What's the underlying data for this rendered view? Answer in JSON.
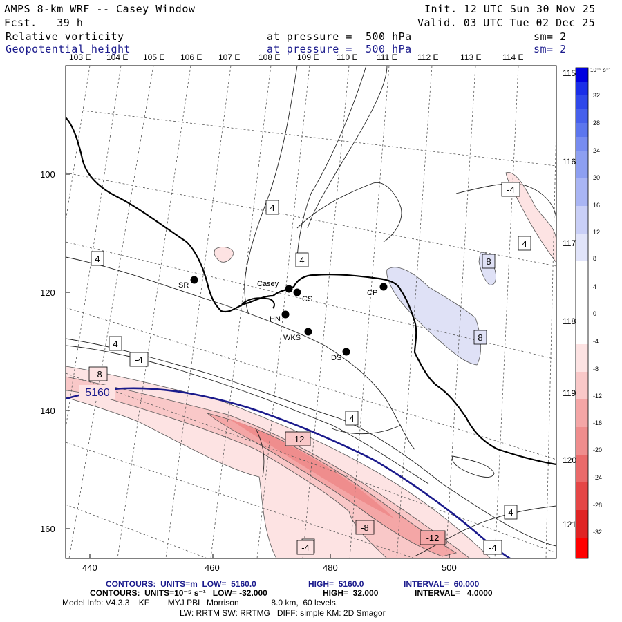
{
  "header": {
    "title": "AMPS 8-km WRF -- Casey Window",
    "forecast": "Fcst.   39 h",
    "init": "Init. 12 UTC Sun 30 Nov 25",
    "valid": "Valid. 03 UTC Tue 02 Dec 25",
    "field1_name": "Relative vorticity",
    "field1_level": "at pressure =  500 hPa",
    "field1_sm": "sm= 2",
    "field2_name": "Geopotential height",
    "field2_level": "at pressure =  500 hPa",
    "field2_sm": "sm= 2"
  },
  "colors": {
    "contour_blue": "#1a1a8c",
    "neg_light": "#fde3e3",
    "neg_mid": "#f9c8c8",
    "neg_strong": "#f4a6a6",
    "neg_deep": "#ef8d8d",
    "pos_light": "#dfe1f6"
  },
  "longitude_labels": [
    "103 E",
    "104 E",
    "105 E",
    "106 E",
    "107 E",
    "108 E",
    "109 E",
    "110 E",
    "111 E",
    "112 E",
    "113 E",
    "114 E"
  ],
  "right_lon_labels": [
    "115 E",
    "116 E",
    "117 E",
    "118 E",
    "119 E",
    "120 E",
    "121 E"
  ],
  "x_axis_ticks": [
    "440",
    "460",
    "480",
    "500"
  ],
  "y_axis_ticks": [
    "100",
    "120",
    "140",
    "160"
  ],
  "stations": [
    {
      "name": "SR"
    },
    {
      "name": "Casey"
    },
    {
      "name": "CS"
    },
    {
      "name": "HN"
    },
    {
      "name": "WKS"
    },
    {
      "name": "DS"
    },
    {
      "name": "CP"
    }
  ],
  "contour_labels": {
    "height": "5160",
    "vort": [
      "4",
      "4",
      "4",
      "4",
      "4",
      "4",
      "4",
      "4",
      "-4",
      "-4",
      "-4",
      "-4",
      "-8",
      "-8",
      "-12",
      "-12",
      "8",
      "8"
    ]
  },
  "colorbar": {
    "units": "10⁻⁵ s⁻¹",
    "labels": [
      "32",
      "28",
      "24",
      "20",
      "16",
      "12",
      "8",
      "4",
      "0",
      "-4",
      "-8",
      "-12",
      "-16",
      "-20",
      "-24",
      "-28",
      "-32"
    ]
  },
  "footer": {
    "line1_a": "CONTOURS:  UNITS=m  LOW=  5160.0",
    "line1_b": "HIGH=  5160.0",
    "line1_c": "INTERVAL=  60.000",
    "line2_a": "CONTOURS:  UNITS=10⁻⁵ s⁻¹   LOW= -32.000",
    "line2_b": "HIGH=  32.000",
    "line2_c": "INTERVAL=   4.0000",
    "line3": "Model Info: V4.3.3    KF        MYJ PBL  Morrison              8.0 km,  60 levels,",
    "line4": "LW: RRTM SW: RRTMG   DIFF: simple KM: 2D Smagor"
  }
}
